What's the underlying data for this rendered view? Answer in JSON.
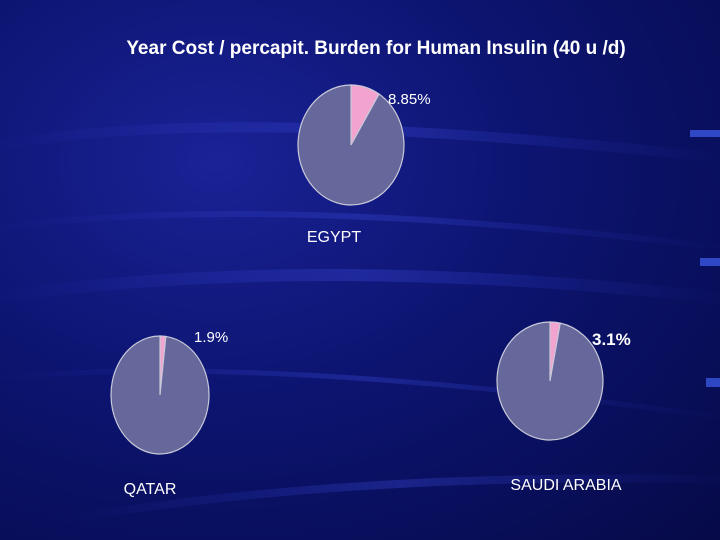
{
  "slide": {
    "title": "Year Cost / percapit. Burden for Human Insulin (40 u /d)"
  },
  "colors": {
    "share": "#f2a3cf",
    "remainder": "#66689c",
    "outline": "#c9c9d9",
    "text": "#ffffff"
  },
  "chart_data": [
    {
      "type": "pie",
      "title": "EGYPT",
      "slices": [
        {
          "label": "8.85%",
          "value": 8.85
        },
        {
          "label": "",
          "value": 91.15
        }
      ]
    },
    {
      "type": "pie",
      "title": "QATAR",
      "slices": [
        {
          "label": "1.9%",
          "value": 1.9
        },
        {
          "label": "",
          "value": 98.1
        }
      ]
    },
    {
      "type": "pie",
      "title": "SAUDI ARABIA",
      "slices": [
        {
          "label": "3.1%",
          "value": 3.1
        },
        {
          "label": "",
          "value": 96.9
        }
      ]
    }
  ]
}
